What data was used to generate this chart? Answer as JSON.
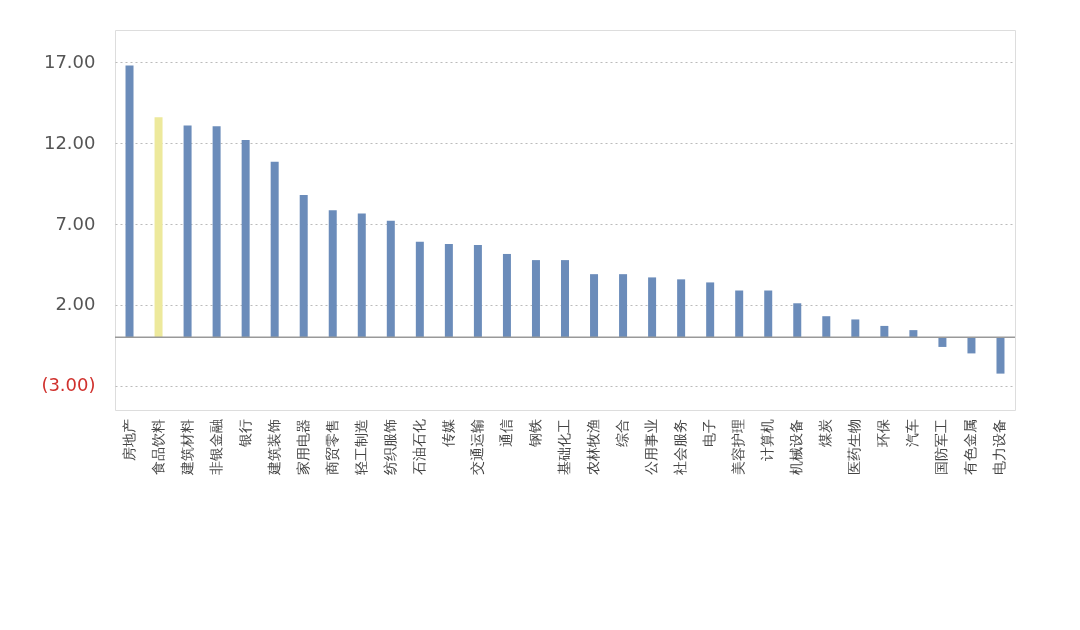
{
  "chart_data": {
    "type": "bar",
    "categories": [
      "房地产",
      "食品饮料",
      "建筑材料",
      "非银金融",
      "银行",
      "建筑装饰",
      "家用电器",
      "商贸零售",
      "轻工制造",
      "纺织服饰",
      "石油石化",
      "传媒",
      "交通运输",
      "通信",
      "钢铁",
      "基础化工",
      "农林牧渔",
      "综合",
      "公用事业",
      "社会服务",
      "电子",
      "美容护理",
      "计算机",
      "机械设备",
      "煤炭",
      "医药生物",
      "环保",
      "汽车",
      "国防军工",
      "有色金属",
      "电力设备"
    ],
    "values": [
      16.8,
      13.6,
      13.1,
      13.05,
      12.2,
      10.85,
      8.8,
      7.85,
      7.65,
      7.2,
      5.9,
      5.77,
      5.7,
      5.15,
      4.77,
      4.77,
      3.9,
      3.9,
      3.7,
      3.58,
      3.39,
      2.89,
      2.89,
      2.1,
      1.3,
      1.1,
      0.7,
      0.44,
      -0.6,
      -1.0,
      -2.25
    ],
    "colors": [
      "#6b8cba",
      "#ede99c",
      "#6b8cba",
      "#6b8cba",
      "#6b8cba",
      "#6b8cba",
      "#6b8cba",
      "#6b8cba",
      "#6b8cba",
      "#6b8cba",
      "#6b8cba",
      "#6b8cba",
      "#6b8cba",
      "#6b8cba",
      "#6b8cba",
      "#6b8cba",
      "#6b8cba",
      "#6b8cba",
      "#6b8cba",
      "#6b8cba",
      "#6b8cba",
      "#6b8cba",
      "#6b8cba",
      "#6b8cba",
      "#6b8cba",
      "#6b8cba",
      "#6b8cba",
      "#6b8cba",
      "#6b8cba",
      "#6b8cba",
      "#6b8cba"
    ],
    "ylim": [
      -4.5,
      19
    ],
    "yticks": [
      {
        "value": -3,
        "label": "(3.00)"
      },
      {
        "value": 2,
        "label": "2.00"
      },
      {
        "value": 7,
        "label": "7.00"
      },
      {
        "value": 12,
        "label": "12.00"
      },
      {
        "value": 17,
        "label": "17.00"
      }
    ],
    "ref_lines": [
      {
        "axis": "y",
        "value": 0,
        "color": "#999999"
      }
    ],
    "grid": "y"
  }
}
